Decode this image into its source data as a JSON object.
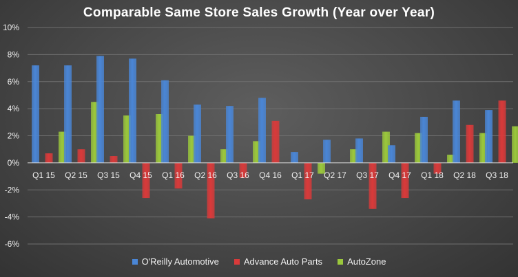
{
  "chart_data": {
    "type": "bar",
    "title": "Comparable Same Store Sales Growth (Year over Year)",
    "xlabel": "",
    "ylabel": "",
    "ylim": [
      -6,
      10
    ],
    "ytick_values": [
      -6,
      -4,
      -2,
      0,
      2,
      4,
      6,
      8,
      10
    ],
    "ytick_labels": [
      "-6%",
      "-4%",
      "-2%",
      "0%",
      "2%",
      "4%",
      "6%",
      "8%",
      "10%"
    ],
    "categories": [
      "Q1 15",
      "Q2 15",
      "Q3 15",
      "Q4 15",
      "Q1 16",
      "Q2 16",
      "Q3 16",
      "Q4 16",
      "Q1 17",
      "Q2 17",
      "Q3 17",
      "Q4 17",
      "Q1 18",
      "Q2 18",
      "Q3 18"
    ],
    "grid": true,
    "legend_position": "bottom",
    "series": [
      {
        "name": "O'Reilly Automotive",
        "color": "#4a86d6",
        "values": [
          7.2,
          7.2,
          7.9,
          7.7,
          6.1,
          4.3,
          4.2,
          4.8,
          0.8,
          1.7,
          1.8,
          1.3,
          3.4,
          4.6,
          3.9
        ]
      },
      {
        "name": "Advance Auto Parts",
        "color": "#d93a3a",
        "values": [
          0.7,
          1.0,
          0.5,
          -2.6,
          -1.9,
          -4.1,
          -1.1,
          3.1,
          -2.7,
          0.0,
          -3.4,
          -2.6,
          -0.8,
          2.8,
          4.6
        ]
      },
      {
        "name": "AutoZone",
        "color": "#9bc83c",
        "values": [
          2.3,
          4.5,
          3.5,
          3.6,
          2.0,
          1.0,
          1.6,
          0.0,
          -0.8,
          1.0,
          2.3,
          2.2,
          0.6,
          2.2,
          2.7
        ]
      }
    ]
  }
}
